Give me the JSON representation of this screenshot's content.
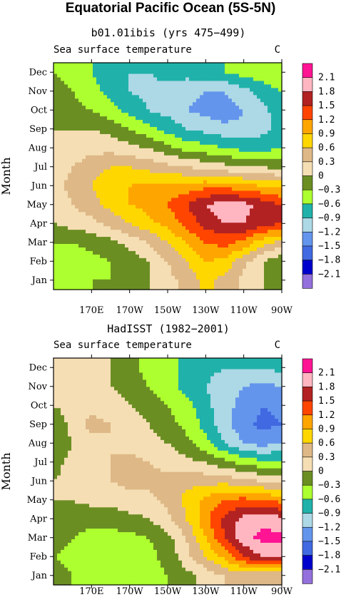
{
  "figure": {
    "title": "Equatorial Pacific Ocean (5S-5N)"
  },
  "chart_data": [
    {
      "type": "heatmap",
      "title": "b01.01ibis (yrs 475−499)",
      "variable": "Sea surface temperature",
      "units": "C",
      "ylabel": "Month",
      "xlabel": "",
      "x_ticks": [
        "170E",
        "170W",
        "150W",
        "130W",
        "110W",
        "90W"
      ],
      "y_ticks": [
        "Jan",
        "Feb",
        "Mar",
        "Apr",
        "May",
        "Jun",
        "Jul",
        "Aug",
        "Sep",
        "Oct",
        "Nov",
        "Dec"
      ],
      "x_range": [
        "150E",
        "90W"
      ],
      "x": [
        150,
        160,
        170,
        180,
        190,
        200,
        210,
        220,
        230,
        240,
        250,
        260,
        270
      ],
      "y": [
        1,
        2,
        3,
        4,
        5,
        6,
        7,
        8,
        9,
        10,
        11,
        12
      ],
      "z": [
        [
          -0.3,
          -0.4,
          -0.3,
          -0.3,
          -0.2,
          0.0,
          0.2,
          0.4,
          0.7,
          0.5,
          0.2,
          0.0,
          -0.2
        ],
        [
          -0.4,
          -0.5,
          -0.4,
          -0.3,
          -0.2,
          0.0,
          0.3,
          0.6,
          0.9,
          0.8,
          0.4,
          0.0,
          -0.3
        ],
        [
          -0.3,
          -0.3,
          -0.2,
          -0.1,
          0.1,
          0.3,
          0.6,
          0.9,
          1.2,
          1.3,
          1.1,
          0.7,
          0.5
        ],
        [
          0.0,
          0.1,
          0.2,
          0.4,
          0.6,
          0.8,
          1.0,
          1.3,
          1.6,
          1.8,
          1.8,
          1.6,
          1.5
        ],
        [
          0.1,
          0.3,
          0.5,
          0.7,
          0.9,
          1.0,
          1.2,
          1.5,
          1.8,
          2.0,
          1.9,
          1.7,
          1.5
        ],
        [
          0.2,
          0.4,
          0.6,
          0.8,
          0.9,
          1.0,
          1.0,
          1.0,
          1.1,
          1.1,
          1.0,
          0.9,
          0.8
        ],
        [
          0.1,
          0.3,
          0.5,
          0.6,
          0.6,
          0.5,
          0.4,
          0.3,
          0.2,
          0.1,
          0.0,
          0.0,
          -0.1
        ],
        [
          0.0,
          0.1,
          0.2,
          0.2,
          0.1,
          0.0,
          -0.2,
          -0.4,
          -0.5,
          -0.6,
          -0.7,
          -0.7,
          -0.6
        ],
        [
          0.0,
          0.0,
          0.0,
          -0.1,
          -0.3,
          -0.5,
          -0.7,
          -0.9,
          -1.0,
          -1.1,
          -1.1,
          -1.0,
          -0.8
        ],
        [
          -0.1,
          -0.2,
          -0.3,
          -0.5,
          -0.7,
          -0.9,
          -1.0,
          -1.2,
          -1.3,
          -1.4,
          -1.2,
          -1.0,
          -0.7
        ],
        [
          -0.2,
          -0.3,
          -0.5,
          -0.7,
          -0.9,
          -1.0,
          -1.0,
          -1.1,
          -1.2,
          -1.2,
          -1.0,
          -0.8,
          -0.6
        ],
        [
          -0.3,
          -0.4,
          -0.6,
          -0.8,
          -0.9,
          -0.9,
          -0.8,
          -0.8,
          -0.7,
          -0.6,
          -0.5,
          -0.4,
          -0.3
        ]
      ]
    },
    {
      "type": "heatmap",
      "title": "HadISST (1982−2001)",
      "variable": "Sea surface temperature",
      "units": "C",
      "ylabel": "Month",
      "xlabel": "",
      "x_ticks": [
        "170E",
        "170W",
        "150W",
        "130W",
        "110W",
        "90W"
      ],
      "y_ticks": [
        "Jan",
        "Feb",
        "Mar",
        "Apr",
        "May",
        "Jun",
        "Jul",
        "Aug",
        "Sep",
        "Oct",
        "Nov",
        "Dec"
      ],
      "x_range": [
        "150E",
        "90W"
      ],
      "x": [
        150,
        160,
        170,
        180,
        190,
        200,
        210,
        220,
        230,
        240,
        250,
        260,
        270
      ],
      "y": [
        1,
        2,
        3,
        4,
        5,
        6,
        7,
        8,
        9,
        10,
        11,
        12
      ],
      "z": [
        [
          -0.2,
          -0.3,
          -0.4,
          -0.4,
          -0.5,
          -0.4,
          -0.3,
          -0.1,
          0.1,
          0.3,
          0.4,
          0.3,
          0.3
        ],
        [
          -0.3,
          -0.4,
          -0.5,
          -0.5,
          -0.5,
          -0.4,
          -0.2,
          0.2,
          0.6,
          1.0,
          1.5,
          1.8,
          1.8
        ],
        [
          -0.2,
          -0.3,
          -0.4,
          -0.4,
          -0.4,
          -0.3,
          -0.1,
          0.3,
          0.9,
          1.5,
          2.0,
          2.2,
          2.2
        ],
        [
          -0.1,
          -0.2,
          -0.2,
          -0.2,
          -0.1,
          0.0,
          0.2,
          0.6,
          1.1,
          1.6,
          1.9,
          2.0,
          1.9
        ],
        [
          0.0,
          0.0,
          0.1,
          0.1,
          0.2,
          0.2,
          0.4,
          0.7,
          1.0,
          1.2,
          1.3,
          1.2,
          1.1
        ],
        [
          0.0,
          0.1,
          0.2,
          0.3,
          0.4,
          0.4,
          0.4,
          0.5,
          0.5,
          0.5,
          0.4,
          0.3,
          0.2
        ],
        [
          -0.1,
          0.1,
          0.2,
          0.3,
          0.4,
          0.3,
          0.2,
          0.1,
          0.0,
          -0.2,
          -0.4,
          -0.5,
          -0.5
        ],
        [
          -0.3,
          0.0,
          0.2,
          0.3,
          0.2,
          0.1,
          0.0,
          -0.2,
          -0.5,
          -0.9,
          -1.2,
          -1.3,
          -1.2
        ],
        [
          -0.2,
          0.1,
          0.4,
          0.3,
          0.1,
          0.0,
          -0.2,
          -0.4,
          -0.7,
          -1.1,
          -1.4,
          -1.6,
          -1.5
        ],
        [
          0.0,
          0.1,
          0.2,
          0.1,
          0.0,
          -0.1,
          -0.3,
          -0.5,
          -0.8,
          -1.1,
          -1.3,
          -1.5,
          -1.4
        ],
        [
          0.1,
          0.1,
          0.1,
          0.0,
          -0.1,
          -0.3,
          -0.5,
          -0.7,
          -0.9,
          -1.1,
          -1.2,
          -1.3,
          -1.2
        ],
        [
          0.2,
          0.2,
          0.1,
          0.0,
          -0.2,
          -0.4,
          -0.5,
          -0.7,
          -0.8,
          -0.9,
          -0.9,
          -0.9,
          -0.8
        ]
      ]
    }
  ],
  "colorbar": {
    "labels": [
      "2.1",
      "1.8",
      "1.5",
      "1.2",
      "0.9",
      "0.6",
      "0.3",
      "0",
      "−0.3",
      "−0.6",
      "−0.9",
      "−1.2",
      "−1.5",
      "−1.8",
      "−2.1"
    ],
    "levels": [
      2.1,
      1.8,
      1.5,
      1.2,
      0.9,
      0.6,
      0.3,
      0,
      -0.3,
      -0.6,
      -0.9,
      -1.2,
      -1.5,
      -1.8,
      -2.1
    ],
    "colors_top_to_bottom": [
      "#ff1493",
      "#ffb6c1",
      "#b22222",
      "#ff4500",
      "#ffa500",
      "#ffd700",
      "#deb887",
      "#f5deb3",
      "#6b8e23",
      "#adff2f",
      "#20b2aa",
      "#add8e6",
      "#6495ed",
      "#4169e1",
      "#0000cd",
      "#9370db"
    ]
  }
}
